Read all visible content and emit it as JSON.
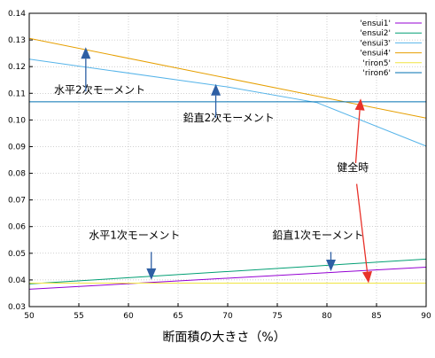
{
  "chart_data": {
    "type": "line",
    "xlabel": "断面積の大きさ（%）",
    "ylabel": "",
    "xlim": [
      50,
      90
    ],
    "ylim": [
      0.03,
      0.14
    ],
    "xticks": [
      50,
      55,
      60,
      65,
      70,
      75,
      80,
      85,
      90
    ],
    "yticks": [
      0.03,
      0.04,
      0.05,
      0.06,
      0.07,
      0.08,
      0.09,
      0.1,
      0.11,
      0.12,
      0.13,
      0.14
    ],
    "grid": true,
    "legend_position": "top-right",
    "series": [
      {
        "name": "'ensui1'",
        "color": "#9400d3",
        "x": [
          50,
          90
        ],
        "y": [
          0.0365,
          0.0448
        ]
      },
      {
        "name": "'ensui2'",
        "color": "#009e73",
        "x": [
          50,
          90
        ],
        "y": [
          0.0385,
          0.0478
        ]
      },
      {
        "name": "'ensui3'",
        "color": "#56b4e9",
        "x": [
          50,
          70,
          79,
          90
        ],
        "y": [
          0.1228,
          0.1124,
          0.1065,
          0.0902
        ]
      },
      {
        "name": "'ensui4'",
        "color": "#e69f00",
        "x": [
          50,
          90
        ],
        "y": [
          0.1306,
          0.1007
        ]
      },
      {
        "name": "'riron5'",
        "color": "#f0e442",
        "x": [
          50,
          90
        ],
        "y": [
          0.0388,
          0.0388
        ]
      },
      {
        "name": "'riron6'",
        "color": "#0072b2",
        "x": [
          50,
          90
        ],
        "y": [
          0.1068,
          0.1068
        ]
      }
    ],
    "annotations": [
      {
        "text": "水平2次モーメント",
        "x": 52.5,
        "y": 0.11,
        "color": "#000000"
      },
      {
        "text": "鉛直2次モーメント",
        "x": 65.5,
        "y": 0.0995,
        "color": "#000000"
      },
      {
        "text": "健全時",
        "x": 81.0,
        "y": 0.0808,
        "color": "#e8322a"
      },
      {
        "text": "水平1次モーメント",
        "x": 56.0,
        "y": 0.0555,
        "color": "#000000"
      },
      {
        "text": "鉛直1次モーメント",
        "x": 74.5,
        "y": 0.0555,
        "color": "#000000"
      }
    ],
    "arrows": [
      {
        "from": [
          55.7,
          0.1107
        ],
        "to": [
          55.7,
          0.1273
        ],
        "color": "#2e5fa4"
      },
      {
        "from": [
          68.8,
          0.1008
        ],
        "to": [
          68.8,
          0.1135
        ],
        "color": "#2e5fa4"
      },
      {
        "from": [
          62.3,
          0.0505
        ],
        "to": [
          62.3,
          0.04
        ],
        "color": "#2e5fa4"
      },
      {
        "from": [
          80.4,
          0.0505
        ],
        "to": [
          80.4,
          0.0433
        ],
        "color": "#2e5fa4"
      },
      {
        "from": [
          82.9,
          0.0838
        ],
        "to": [
          83.4,
          0.108
        ],
        "color": "#e8322a"
      },
      {
        "from": [
          83.0,
          0.076
        ],
        "to": [
          84.2,
          0.0388
        ],
        "color": "#e8322a"
      }
    ]
  }
}
